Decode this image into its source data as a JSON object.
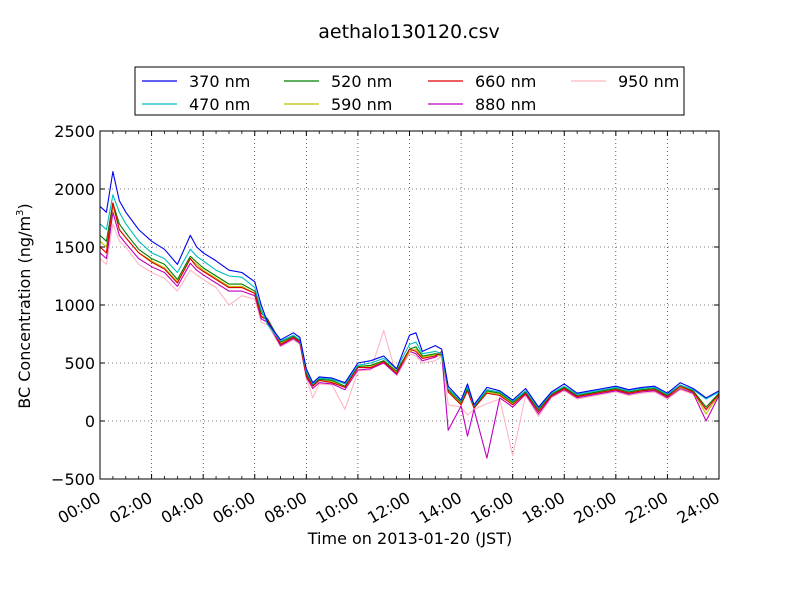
{
  "chart_data": {
    "type": "line",
    "title": "aethalo130120.csv",
    "xlabel": "Time on 2013-01-20 (JST)",
    "ylabel_main": "BC Concentration (ng/m",
    "ylabel_sup": "3",
    "ylabel_close": ")",
    "xlim_hours": [
      0,
      24
    ],
    "ylim": [
      -500,
      2500
    ],
    "grid": true,
    "legend_position": "top-center",
    "xticks": [
      {
        "hour": 0,
        "label": "00:00"
      },
      {
        "hour": 2,
        "label": "02:00"
      },
      {
        "hour": 4,
        "label": "04:00"
      },
      {
        "hour": 6,
        "label": "06:00"
      },
      {
        "hour": 8,
        "label": "08:00"
      },
      {
        "hour": 10,
        "label": "10:00"
      },
      {
        "hour": 12,
        "label": "12:00"
      },
      {
        "hour": 14,
        "label": "14:00"
      },
      {
        "hour": 16,
        "label": "16:00"
      },
      {
        "hour": 18,
        "label": "18:00"
      },
      {
        "hour": 20,
        "label": "20:00"
      },
      {
        "hour": 22,
        "label": "22:00"
      },
      {
        "hour": 24,
        "label": "24:00"
      }
    ],
    "yticks": [
      {
        "value": -500,
        "label": "−500"
      },
      {
        "value": 0,
        "label": "0"
      },
      {
        "value": 500,
        "label": "500"
      },
      {
        "value": 1000,
        "label": "1000"
      },
      {
        "value": 1500,
        "label": "1500"
      },
      {
        "value": 2000,
        "label": "2000"
      },
      {
        "value": 2500,
        "label": "2500"
      }
    ],
    "x_hours": [
      0.0,
      0.25,
      0.5,
      0.75,
      1.0,
      1.5,
      2.0,
      2.5,
      3.0,
      3.5,
      3.75,
      4.0,
      4.5,
      5.0,
      5.5,
      6.0,
      6.25,
      6.5,
      7.0,
      7.5,
      7.75,
      8.0,
      8.25,
      8.5,
      9.0,
      9.5,
      10.0,
      10.5,
      11.0,
      11.5,
      12.0,
      12.25,
      12.5,
      13.0,
      13.25,
      13.5,
      14.0,
      14.25,
      14.5,
      15.0,
      15.5,
      16.0,
      16.5,
      17.0,
      17.5,
      18.0,
      18.5,
      19.0,
      19.5,
      20.0,
      20.5,
      21.0,
      21.5,
      22.0,
      22.5,
      23.0,
      23.5,
      24.0
    ],
    "series": [
      {
        "name": "370 nm",
        "color": "#0000ee",
        "values": [
          1850,
          1800,
          2150,
          1900,
          1800,
          1650,
          1550,
          1480,
          1350,
          1600,
          1500,
          1450,
          1380,
          1300,
          1280,
          1200,
          1000,
          850,
          700,
          760,
          720,
          450,
          330,
          380,
          370,
          330,
          500,
          520,
          560,
          450,
          740,
          760,
          600,
          650,
          620,
          300,
          180,
          320,
          140,
          290,
          260,
          180,
          280,
          120,
          250,
          320,
          240,
          260,
          280,
          300,
          270,
          290,
          300,
          240,
          330,
          280,
          200,
          260
        ]
      },
      {
        "name": "470 nm",
        "color": "#00bfbf",
        "values": [
          1700,
          1650,
          1950,
          1800,
          1700,
          1550,
          1450,
          1400,
          1280,
          1480,
          1420,
          1380,
          1300,
          1250,
          1240,
          1150,
          960,
          830,
          690,
          740,
          700,
          430,
          320,
          370,
          360,
          320,
          480,
          500,
          540,
          450,
          660,
          680,
          580,
          600,
          580,
          280,
          170,
          300,
          130,
          270,
          250,
          170,
          260,
          110,
          240,
          300,
          230,
          250,
          270,
          290,
          260,
          280,
          290,
          230,
          310,
          270,
          190,
          250
        ]
      },
      {
        "name": "520 nm",
        "color": "#007f00",
        "values": [
          1600,
          1550,
          1880,
          1700,
          1620,
          1480,
          1400,
          1350,
          1220,
          1420,
          1370,
          1320,
          1250,
          1180,
          1180,
          1120,
          930,
          880,
          680,
          730,
          690,
          410,
          310,
          360,
          350,
          300,
          470,
          480,
          520,
          430,
          620,
          640,
          560,
          580,
          570,
          270,
          160,
          280,
          120,
          260,
          240,
          160,
          250,
          100,
          230,
          290,
          220,
          240,
          260,
          280,
          250,
          270,
          280,
          220,
          300,
          260,
          120,
          240
        ]
      },
      {
        "name": "590 nm",
        "color": "#bfbf00",
        "values": [
          1550,
          1500,
          1850,
          1650,
          1580,
          1450,
          1380,
          1320,
          1200,
          1400,
          1350,
          1300,
          1230,
          1160,
          1160,
          1100,
          910,
          860,
          670,
          720,
          680,
          400,
          300,
          350,
          340,
          290,
          460,
          470,
          510,
          420,
          600,
          620,
          550,
          570,
          560,
          260,
          150,
          270,
          110,
          250,
          230,
          150,
          240,
          90,
          220,
          280,
          210,
          230,
          250,
          270,
          240,
          260,
          270,
          210,
          290,
          250,
          60,
          230
        ]
      },
      {
        "name": "660 nm",
        "color": "#dd0000",
        "values": [
          1500,
          1450,
          1880,
          1650,
          1580,
          1450,
          1370,
          1310,
          1190,
          1400,
          1330,
          1290,
          1220,
          1150,
          1150,
          1100,
          900,
          870,
          660,
          720,
          680,
          390,
          300,
          350,
          330,
          290,
          460,
          460,
          510,
          410,
          620,
          600,
          540,
          560,
          600,
          250,
          140,
          260,
          110,
          240,
          220,
          140,
          240,
          80,
          220,
          280,
          210,
          230,
          250,
          270,
          240,
          260,
          270,
          210,
          300,
          250,
          100,
          230
        ]
      },
      {
        "name": "880 nm",
        "color": "#bf00bf",
        "values": [
          1450,
          1400,
          1800,
          1600,
          1530,
          1400,
          1330,
          1280,
          1160,
          1360,
          1300,
          1260,
          1190,
          1120,
          1120,
          1080,
          880,
          850,
          650,
          710,
          670,
          380,
          280,
          330,
          320,
          270,
          440,
          450,
          500,
          400,
          600,
          580,
          520,
          550,
          580,
          -80,
          130,
          -130,
          100,
          -320,
          200,
          120,
          230,
          60,
          210,
          270,
          200,
          220,
          240,
          260,
          230,
          250,
          260,
          200,
          280,
          240,
          0,
          220
        ]
      },
      {
        "name": "950 nm",
        "color": "#ffb6c1",
        "values": [
          1400,
          1350,
          1700,
          1550,
          1500,
          1350,
          1280,
          1230,
          1120,
          1300,
          1260,
          1220,
          1150,
          1000,
          1080,
          1050,
          850,
          830,
          640,
          700,
          660,
          370,
          200,
          320,
          310,
          100,
          430,
          440,
          780,
          390,
          580,
          560,
          500,
          520,
          560,
          140,
          120,
          50,
          100,
          150,
          190,
          -300,
          220,
          40,
          200,
          260,
          190,
          210,
          230,
          250,
          220,
          240,
          250,
          190,
          270,
          230,
          90,
          210
        ]
      }
    ]
  }
}
